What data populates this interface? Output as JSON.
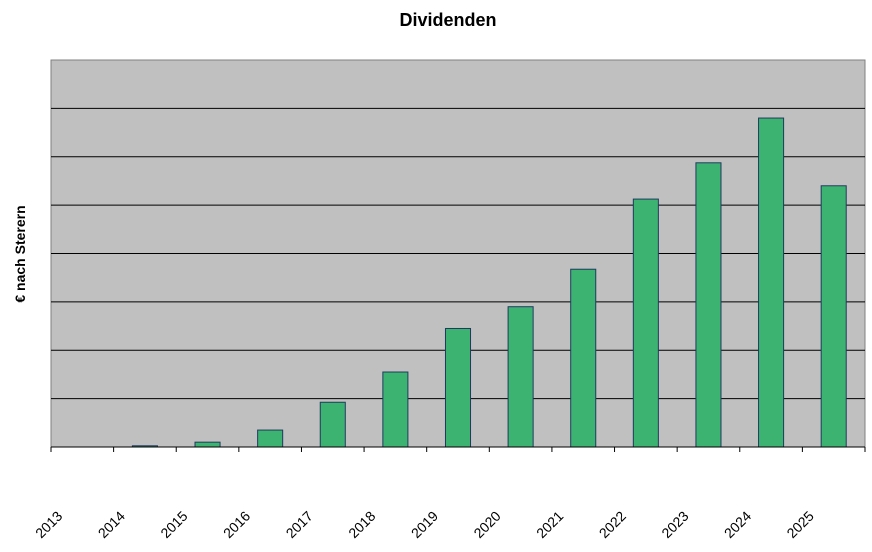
{
  "chart_data": {
    "type": "bar",
    "title": "Dividenden",
    "xlabel": "",
    "ylabel": "€ nach Sterern",
    "categories": [
      "2013",
      "2014",
      "2015",
      "2016",
      "2017",
      "2018",
      "2019",
      "2020",
      "2021",
      "2022",
      "2023",
      "2024",
      "2025"
    ],
    "values": [
      0,
      0.1,
      0.4,
      1.4,
      3.7,
      6.2,
      9.8,
      11.6,
      14.7,
      20.5,
      23.5,
      27.2,
      21.6
    ],
    "ylim": [
      0,
      32
    ],
    "grid": true,
    "legend": "none",
    "colors": {
      "bar": "#3cb371",
      "bar_stroke": "#1f3a5f",
      "plot_background": "#c0c0c0",
      "grid": "#000000"
    }
  }
}
